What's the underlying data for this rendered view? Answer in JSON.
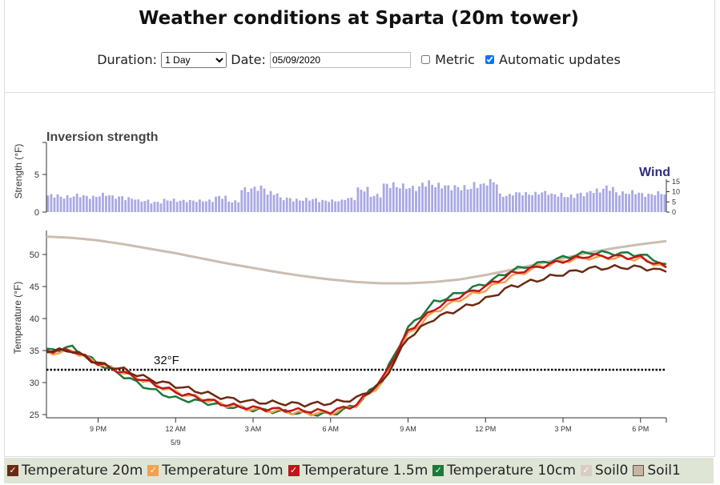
{
  "header": {
    "title": "Weather conditions at Sparta (20m tower)",
    "duration_label": "Duration:",
    "duration_value": "1 Day",
    "date_label": "Date:",
    "date_value": "05/09/2020",
    "metric_label": "Metric",
    "metric_checked": false,
    "auto_label": "Automatic updates",
    "auto_checked": true
  },
  "chart_data": [
    {
      "type": "bar",
      "title": "Inversion strength",
      "ylabel": "Strength (°F)",
      "ylim": [
        0,
        9
      ],
      "yticks": [
        "0",
        "5"
      ],
      "secondary_title": "Wind",
      "secondary_yticks": [
        "0",
        "5",
        "10",
        "15"
      ],
      "color": "#a9a9e3",
      "title_color_secondary": "#2e2e80",
      "values": [
        2.2,
        2,
        2.2,
        2,
        2.3,
        2,
        1.8,
        1.5,
        1.3,
        1.6,
        1.5,
        1.5,
        1.5,
        2,
        1.4,
        3,
        3.2,
        2.5,
        1.8,
        1.6,
        1.7,
        1.5,
        1.5,
        1.8,
        3,
        2.2,
        3.6,
        3.4,
        3.2,
        3.8,
        3.5,
        3.3,
        3.2,
        3.6,
        4,
        2.2,
        2.5,
        2.4,
        2.6,
        2.3,
        2.1,
        2.4,
        2.8,
        3.2,
        2.5,
        2.6,
        2.3,
        2.5
      ]
    },
    {
      "type": "line",
      "ylabel": "Temperature (°F)",
      "ylim": [
        24,
        53.5
      ],
      "yticks": [
        "25",
        "30",
        "35",
        "40",
        "45",
        "50"
      ],
      "xticks": [
        "9 PM",
        "12 AM",
        "3 AM",
        "6 AM",
        "9 AM",
        "12 PM",
        "3 PM",
        "6 PM"
      ],
      "date_label": "5/9",
      "x": [
        "7 PM",
        "8 PM",
        "9 PM",
        "10 PM",
        "11 PM",
        "12 AM",
        "1 AM",
        "2 AM",
        "3 AM",
        "4 AM",
        "5 AM",
        "6 AM",
        "7 AM",
        "8 AM",
        "9 AM",
        "10 AM",
        "11 AM",
        "12 PM",
        "1 PM",
        "2 PM",
        "3 PM",
        "4 PM",
        "5 PM",
        "6 PM",
        "7 PM"
      ],
      "reference_line": {
        "value": 32,
        "label": "32°F"
      },
      "series": [
        {
          "name": "Soil0",
          "color": "#cbbdb1",
          "values": [
            52.8,
            52.6,
            52.2,
            51.6,
            50.9,
            50.2,
            49.4,
            48.6,
            47.9,
            47.2,
            46.6,
            46.1,
            45.7,
            45.5,
            45.5,
            45.7,
            46.1,
            46.8,
            47.6,
            48.5,
            49.4,
            50.3,
            51,
            51.6,
            52.1
          ]
        },
        {
          "name": "Temperature 10cm",
          "color": "#1a7a3a",
          "values": [
            35,
            35.5,
            33,
            31,
            29,
            27.5,
            27,
            26.3,
            25.8,
            25.5,
            25.2,
            25,
            26.5,
            30.5,
            38.5,
            42.5,
            44,
            45.5,
            47.5,
            48.5,
            49.5,
            50.3,
            50.2,
            50,
            48.5
          ]
        },
        {
          "name": "Temperature 10m",
          "color": "#f5a050",
          "values": [
            34.5,
            35,
            33,
            31.5,
            30,
            28.5,
            27.5,
            26.5,
            25.8,
            25.5,
            25.2,
            25.2,
            26.5,
            30,
            37.5,
            41,
            43,
            44.5,
            46.5,
            48,
            49,
            49.5,
            49.5,
            49.3,
            48
          ]
        },
        {
          "name": "Temperature 1.5m",
          "color": "#c0141a",
          "values": [
            35,
            35,
            33,
            31.5,
            30,
            28.5,
            27.5,
            26.5,
            26,
            25.8,
            25.6,
            25.5,
            26.5,
            30.5,
            38,
            41.5,
            43.5,
            45,
            47,
            48,
            49,
            49.8,
            49.7,
            49.5,
            48
          ]
        },
        {
          "name": "Temperature 20m",
          "color": "#6b2a12",
          "values": [
            35,
            35,
            33,
            32,
            30.5,
            29.5,
            28.5,
            27.5,
            27,
            26.8,
            26.6,
            26.8,
            27.5,
            30,
            37,
            40,
            41.5,
            43,
            45,
            46,
            47,
            47.8,
            48,
            48,
            47.3
          ]
        }
      ]
    }
  ],
  "legend": [
    {
      "label": "Temperature 20m",
      "color": "#6b2a12",
      "checked": true
    },
    {
      "label": "Temperature 10m",
      "color": "#f5a050",
      "checked": true
    },
    {
      "label": "Temperature 1.5m",
      "color": "#c0141a",
      "checked": true
    },
    {
      "label": "Temperature 10cm",
      "color": "#1a7a3a",
      "checked": true
    },
    {
      "label": "Soil0",
      "color": "#d8cdc4",
      "checked": true
    },
    {
      "label": "Soil1",
      "color": "#c9b3a5",
      "checked": false
    }
  ]
}
